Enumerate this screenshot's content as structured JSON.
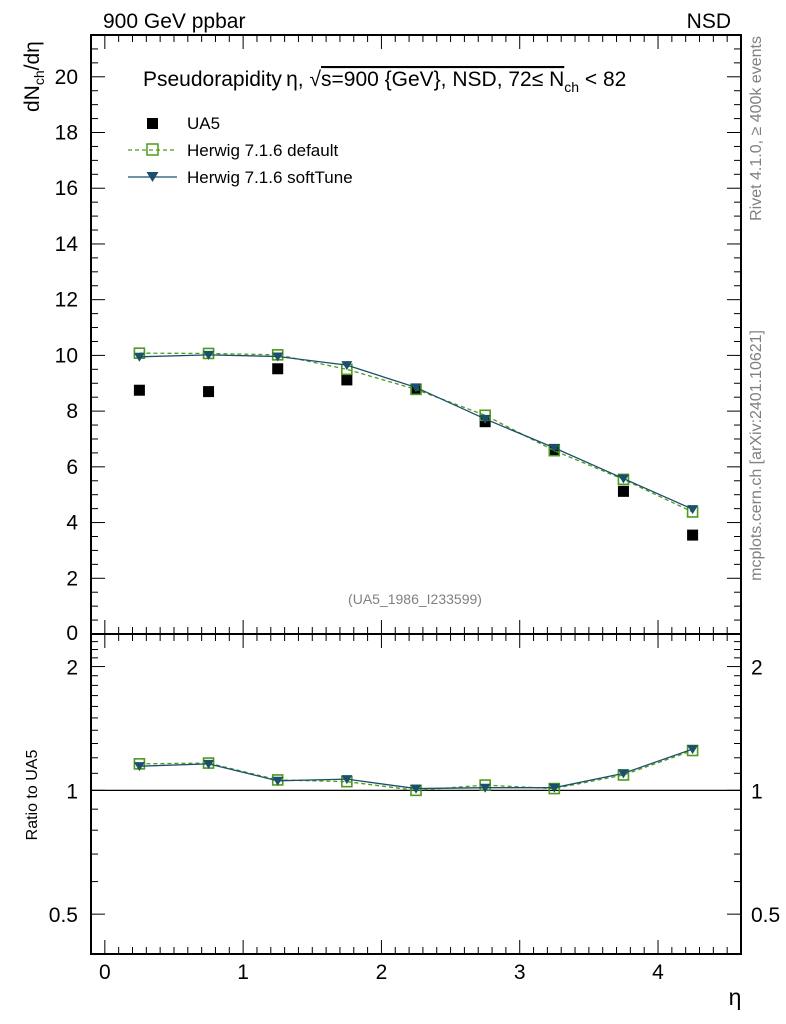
{
  "header": {
    "left": "900 GeV ppbar",
    "right": "NSD"
  },
  "side_labels": {
    "rivet": "Rivet 4.1.0, ≥ 400k events",
    "mcplots": "mcplots.cern.ch [arXiv:2401.10621]"
  },
  "chart_data": [
    {
      "type": "scatter",
      "panel": "main",
      "title": "Pseudorapidity η, √s=900 {GeV}, NSD, 72≤ N_ch < 82",
      "title_parts": {
        "prefix": "Pseudorapidity η, √",
        "s_energy": "s=900 {GeV}, NSD, 72≤ N",
        "sub": "ch",
        "suffix": " < 82"
      },
      "ylabel_parts": {
        "a": "dN",
        "sub": "ch",
        "b": "/dη"
      },
      "xlabel": "η",
      "xlim": [
        -0.1,
        4.6
      ],
      "ylim": [
        0,
        21.5
      ],
      "yticks": [
        2,
        4,
        6,
        8,
        10,
        12,
        14,
        16,
        18,
        20
      ],
      "ytick_labels": [
        "2",
        "4",
        "6",
        "8",
        "10",
        "12",
        "14",
        "16",
        "18",
        "20"
      ],
      "bottom_cut_label": "0",
      "watermark": "(UA5_1986_I233599)",
      "x": [
        0.25,
        0.75,
        1.25,
        1.75,
        2.25,
        2.75,
        3.25,
        3.75,
        4.25
      ],
      "series": [
        {
          "name": "UA5",
          "style": "data",
          "color": "#000000",
          "values": [
            8.75,
            8.7,
            9.52,
            9.12,
            8.78,
            7.62,
            6.62,
            5.12,
            3.55
          ]
        },
        {
          "name": "Herwig 7.1.6 default",
          "style": "dashed-square",
          "color": "#4d9a1c",
          "values": [
            10.08,
            10.07,
            10.02,
            9.5,
            8.78,
            7.85,
            6.58,
            5.55,
            4.38
          ]
        },
        {
          "name": "Herwig 7.1.6 softTune",
          "style": "solid-triangle",
          "color": "#1b4f6b",
          "values": [
            9.95,
            10.02,
            9.96,
            9.65,
            8.85,
            7.72,
            6.68,
            5.58,
            4.48
          ]
        }
      ]
    },
    {
      "type": "line",
      "panel": "ratio",
      "ylabel": "Ratio to UA5",
      "yscale": "log",
      "ylim": [
        0.4,
        2.4
      ],
      "ytick_labels": [
        "0.5",
        "1",
        "2"
      ],
      "ytick_values": [
        0.5,
        1,
        2
      ],
      "reference_value": 1,
      "xticks": [
        0,
        1,
        2,
        3,
        4
      ],
      "xtick_labels": [
        "0",
        "1",
        "2",
        "3",
        "4"
      ],
      "x": [
        0.25,
        0.75,
        1.25,
        1.75,
        2.25,
        2.75,
        3.25,
        3.75,
        4.25
      ],
      "series": [
        {
          "name": "Herwig 7.1.6 default",
          "style": "dashed-square",
          "color": "#4d9a1c",
          "values": [
            1.16,
            1.165,
            1.06,
            1.05,
            1.0,
            1.03,
            1.01,
            1.09,
            1.25
          ]
        },
        {
          "name": "Herwig 7.1.6 softTune",
          "style": "solid-triangle",
          "color": "#1b4f6b",
          "values": [
            1.145,
            1.16,
            1.055,
            1.065,
            1.01,
            1.015,
            1.015,
            1.1,
            1.26
          ]
        }
      ]
    }
  ]
}
